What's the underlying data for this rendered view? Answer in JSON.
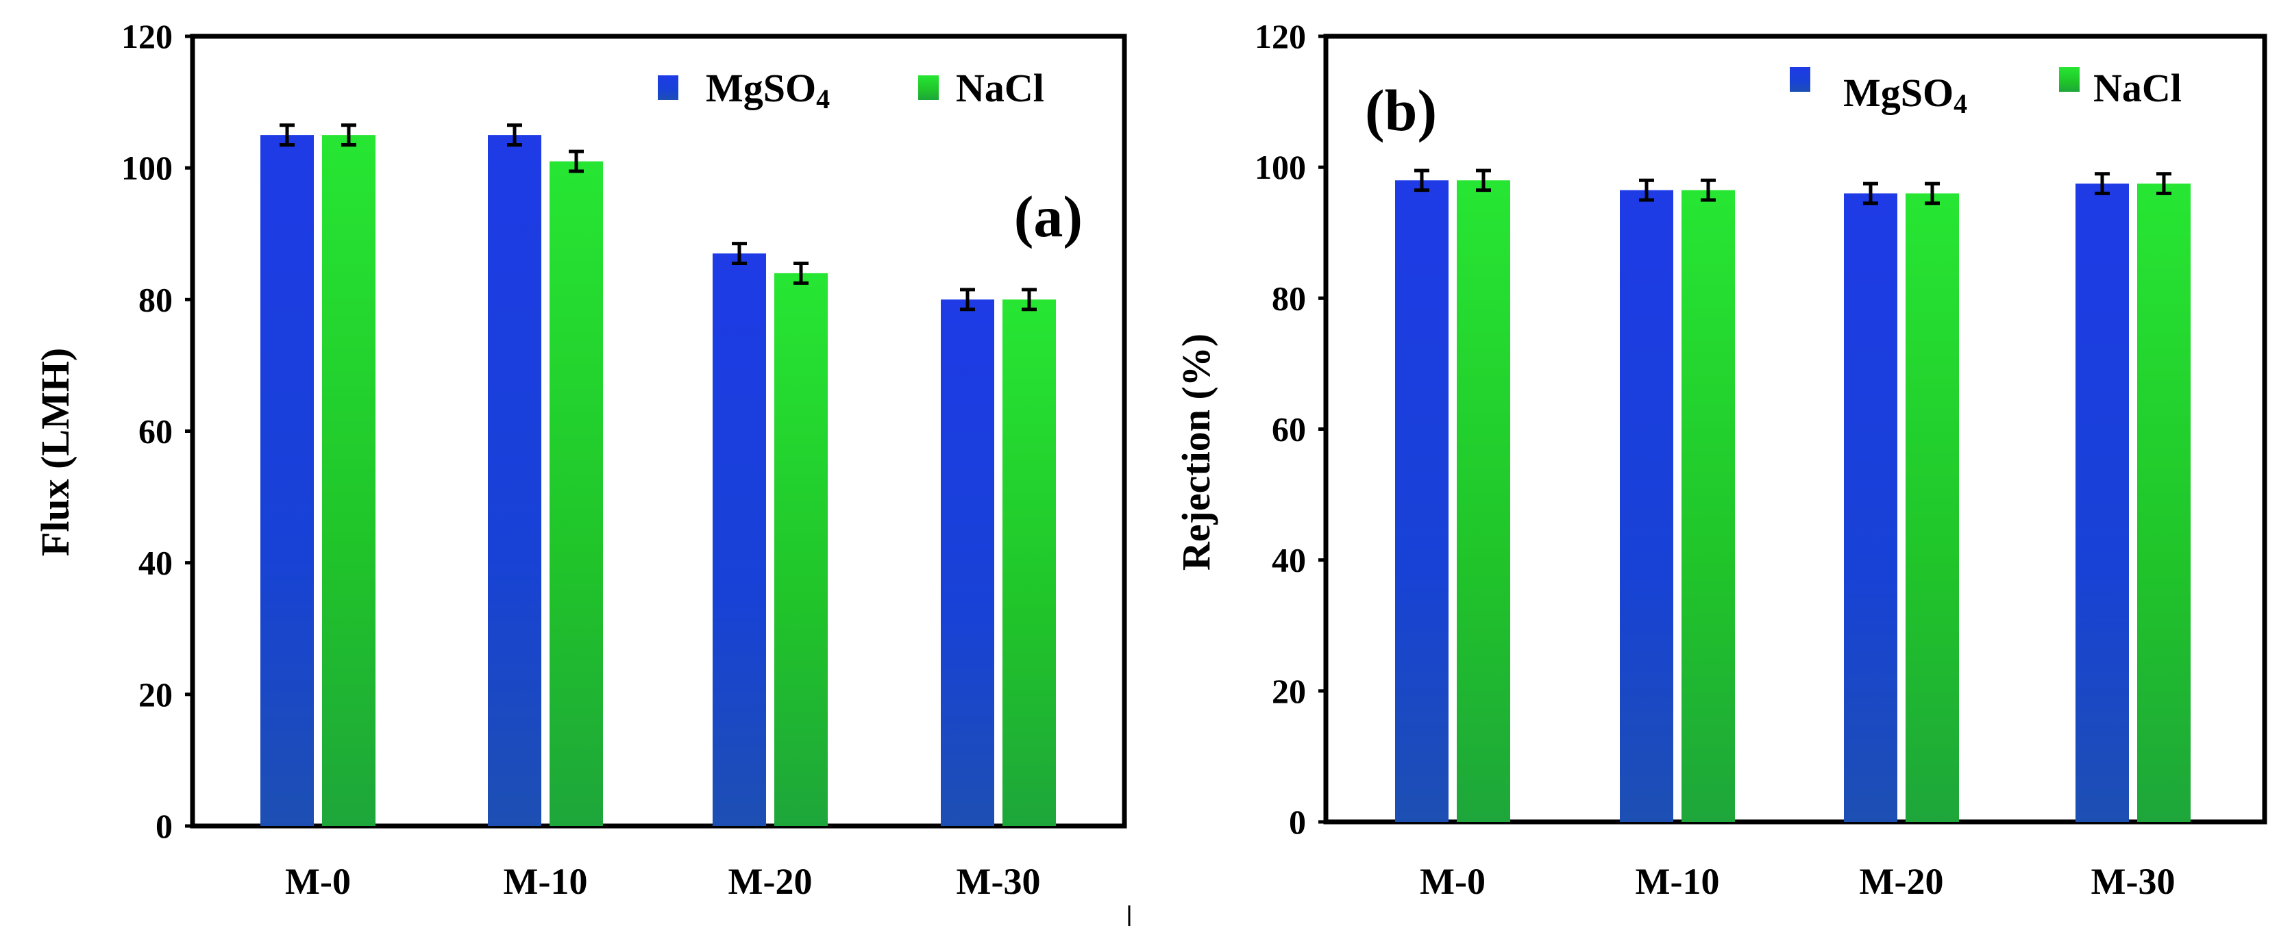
{
  "colors": {
    "series_1": "#1a3fe0",
    "series_2": "#22d32a",
    "frame": "#000000"
  },
  "chart_data": [
    {
      "type": "bar",
      "panel_label": "(a)",
      "ylabel": "Flux (LMH)",
      "xlabel": "",
      "ylim": [
        0,
        120
      ],
      "yticks": [
        0,
        20,
        40,
        60,
        80,
        100,
        120
      ],
      "grid": false,
      "legend_position": "top-right",
      "categories": [
        "M-0",
        "M-10",
        "M-20",
        "M-30"
      ],
      "series": [
        {
          "name": "MgSO",
          "subscript": "4",
          "values": [
            105,
            105,
            87,
            80
          ],
          "errors": [
            1.5,
            1.5,
            1.5,
            1.5
          ]
        },
        {
          "name": "NaCl",
          "subscript": "",
          "values": [
            105,
            101,
            84,
            80
          ],
          "errors": [
            1.5,
            1.5,
            1.5,
            1.5
          ]
        }
      ]
    },
    {
      "type": "bar",
      "panel_label": "(b)",
      "ylabel": "Rejection (%)",
      "xlabel": "",
      "ylim": [
        0,
        120
      ],
      "yticks": [
        0,
        20,
        40,
        60,
        80,
        100,
        120
      ],
      "grid": false,
      "legend_position": "top-right",
      "categories": [
        "M-0",
        "M-10",
        "M-20",
        "M-30"
      ],
      "series": [
        {
          "name": "MgSO",
          "subscript": "4",
          "values": [
            98,
            96.5,
            96,
            97.5
          ],
          "errors": [
            1.5,
            1.5,
            1.5,
            1.5
          ]
        },
        {
          "name": "NaCl",
          "subscript": "",
          "values": [
            98,
            96.5,
            96,
            97.5
          ],
          "errors": [
            1.5,
            1.5,
            1.5,
            1.5
          ]
        }
      ]
    }
  ]
}
